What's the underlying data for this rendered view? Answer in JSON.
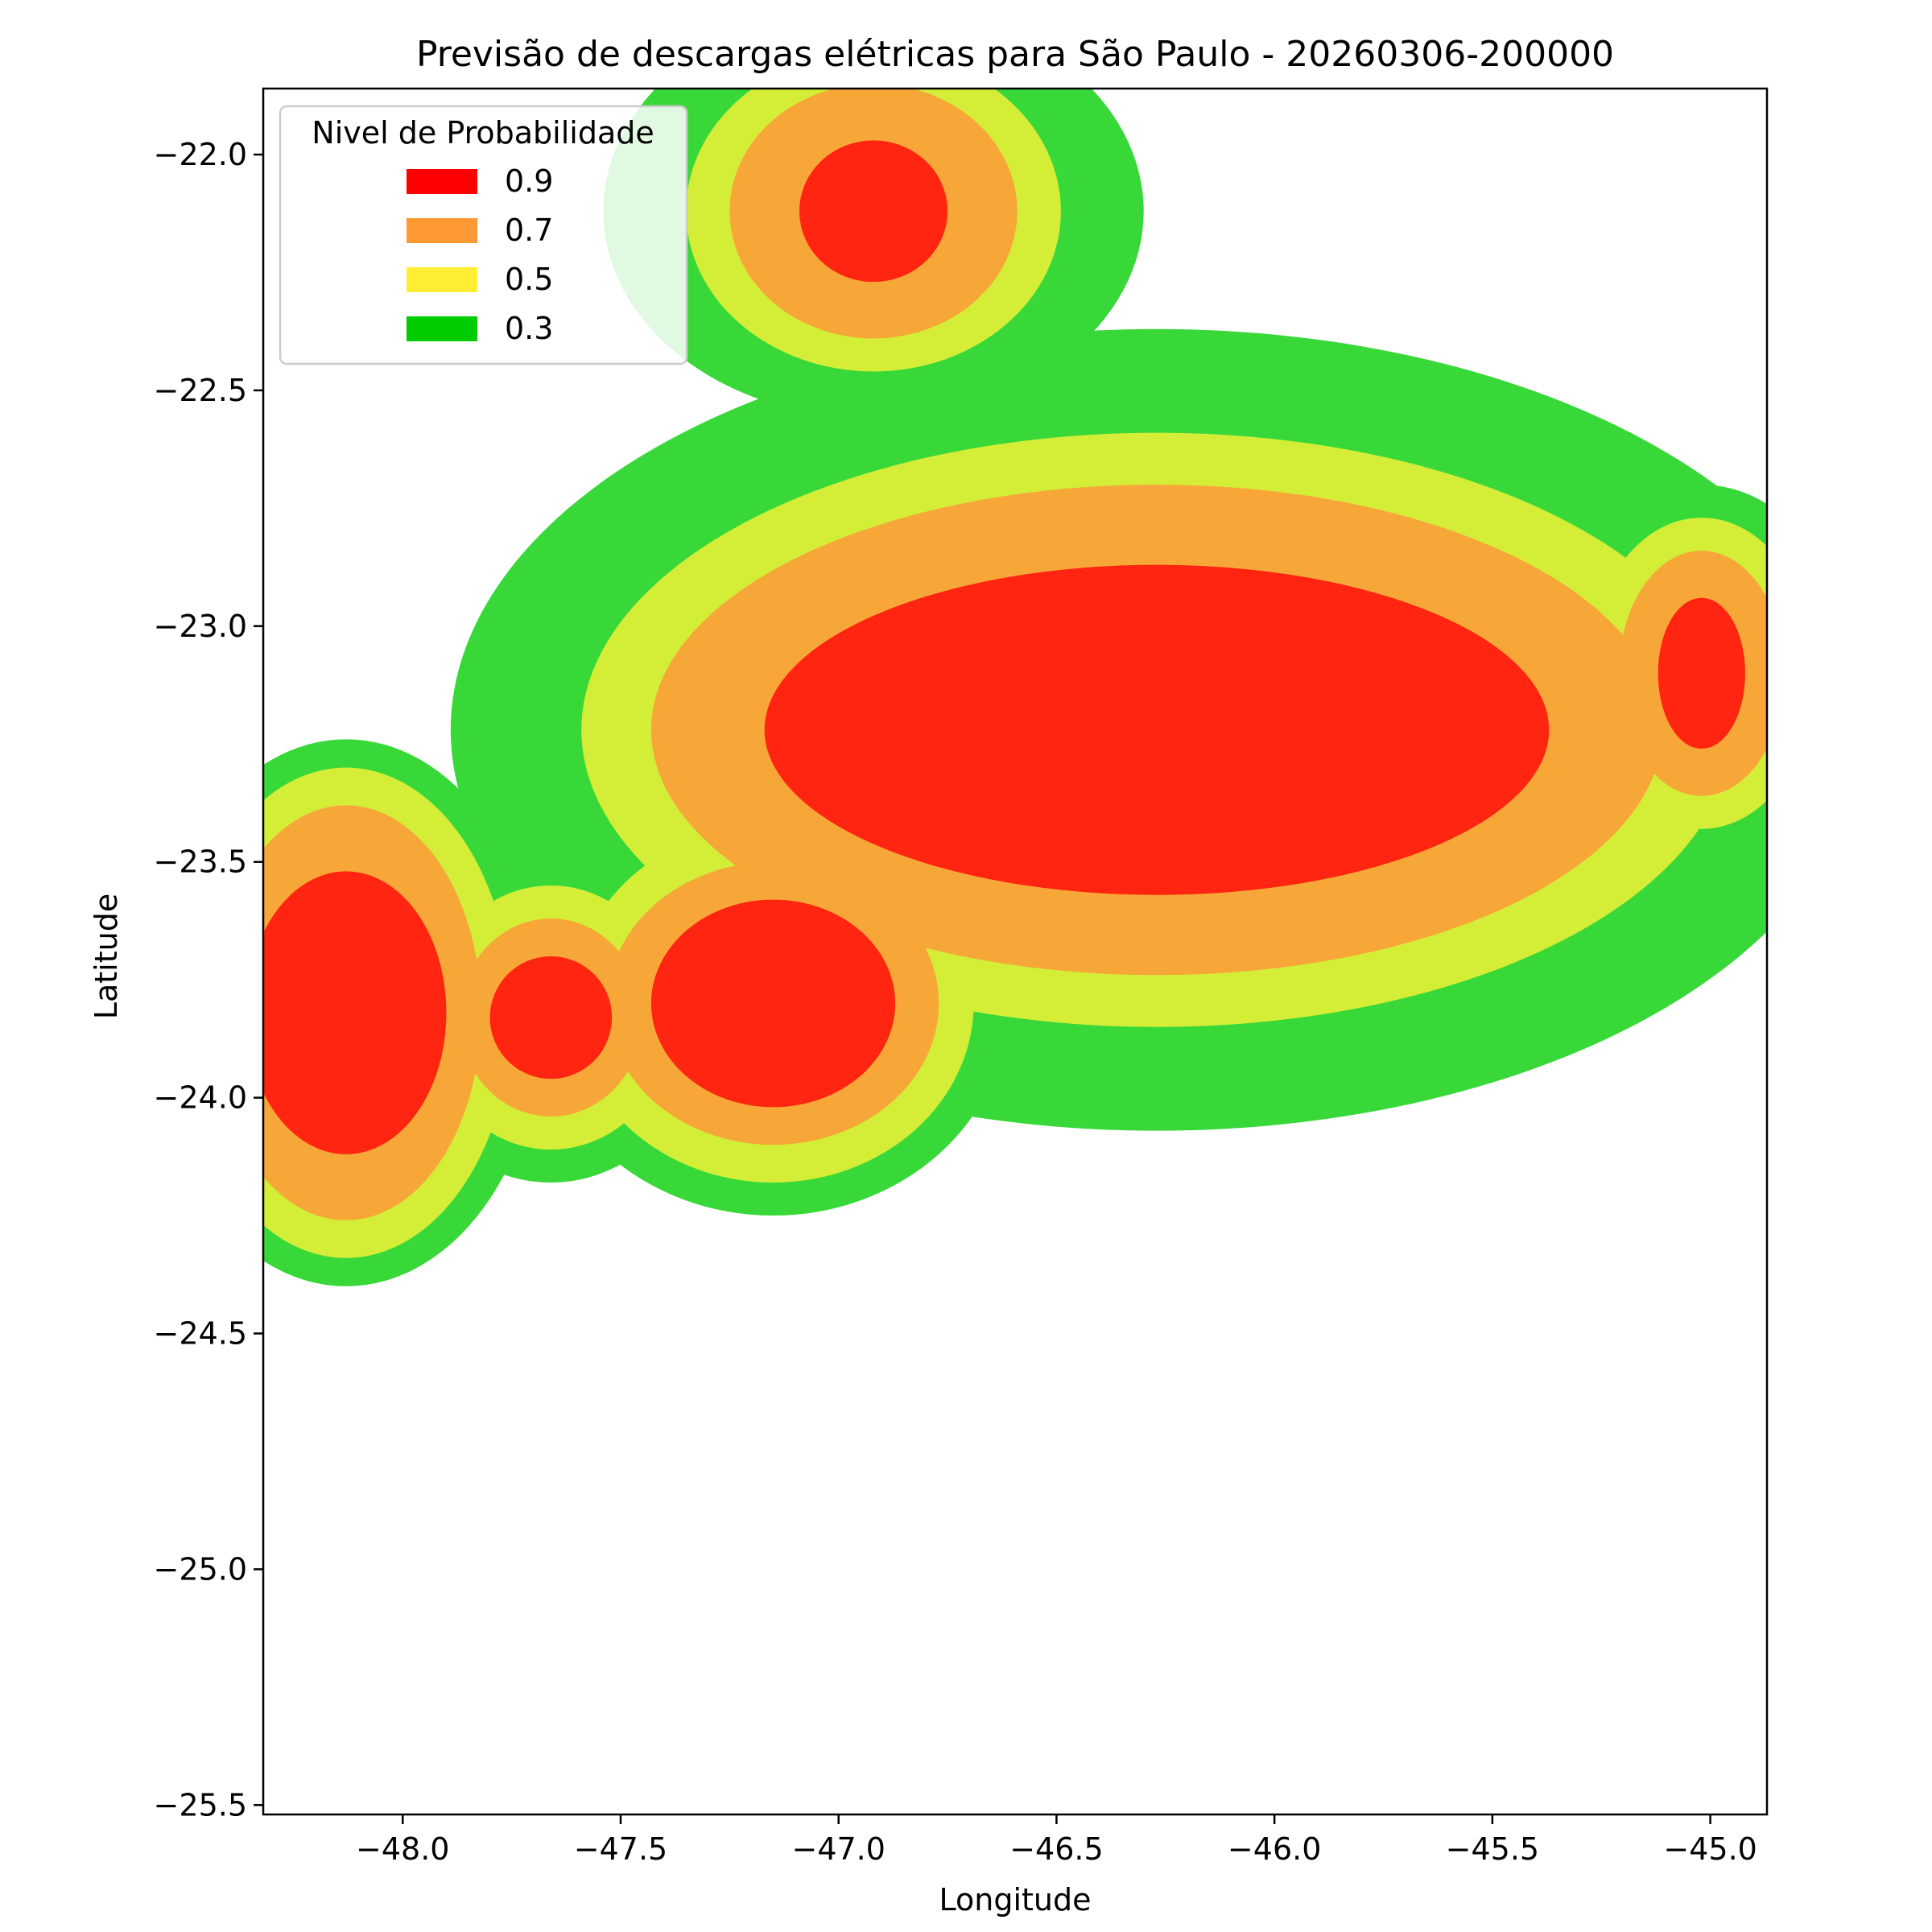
{
  "chart_data": {
    "type": "heatmap",
    "title": "Previsão de descargas elétricas para São Paulo - 20260306-200000",
    "xlabel": "Longitude",
    "ylabel": "Latitude",
    "xlim": [
      -48.32,
      -44.87
    ],
    "ylim": [
      -25.52,
      -21.86
    ],
    "xticks": [
      -48.0,
      -47.5,
      -47.0,
      -46.5,
      -46.0,
      -45.5,
      -45.0
    ],
    "yticks": [
      -22.0,
      -22.5,
      -23.0,
      -23.5,
      -24.0,
      -24.5,
      -25.0,
      -25.5
    ],
    "xtick_labels": [
      "−48.0",
      "−47.5",
      "−47.0",
      "−46.5",
      "−46.0",
      "−45.5",
      "−45.0"
    ],
    "ytick_labels": [
      "−22.0",
      "−22.5",
      "−23.0",
      "−23.5",
      "−24.0",
      "−24.5",
      "−25.0",
      "−25.5"
    ],
    "grid": false,
    "legend": {
      "title": "Nivel de Probabilidade",
      "placement": "top-left",
      "entries": [
        {
          "label": "0.9",
          "color": "#ff0000"
        },
        {
          "label": "0.7",
          "color": "#ff9933"
        },
        {
          "label": "0.5",
          "color": "#ffee33"
        },
        {
          "label": "0.3",
          "color": "#00cc00"
        }
      ]
    },
    "fill_colors": {
      "0.3": "#38d838",
      "0.5": "#d4ee38",
      "0.7": "#f7a738",
      "0.9": "#ff2510"
    },
    "storm_cells": [
      {
        "name": "north",
        "center": [
          -46.92,
          -22.12
        ],
        "radius_lon": [
          0.62,
          0.43,
          0.33,
          0.17
        ],
        "radius_lat": [
          0.44,
          0.34,
          0.27,
          0.15
        ]
      },
      {
        "name": "central",
        "center": [
          -46.27,
          -23.22
        ],
        "radius_lon": [
          1.62,
          1.32,
          1.16,
          0.9
        ],
        "radius_lat": [
          0.85,
          0.63,
          0.52,
          0.35
        ]
      },
      {
        "name": "west",
        "center": [
          -48.13,
          -23.82
        ],
        "radius_lon": [
          0.45,
          0.38,
          0.31,
          0.23
        ],
        "radius_lat": [
          0.58,
          0.52,
          0.44,
          0.3
        ]
      },
      {
        "name": "middle-west",
        "center": [
          -47.66,
          -23.83
        ],
        "radius_lon": [
          0.35,
          0.28,
          0.21,
          0.14
        ],
        "radius_lat": [
          0.35,
          0.28,
          0.21,
          0.13
        ]
      },
      {
        "name": "middle",
        "center": [
          -47.15,
          -23.8
        ],
        "radius_lon": [
          0.54,
          0.46,
          0.38,
          0.28
        ],
        "radius_lat": [
          0.45,
          0.38,
          0.3,
          0.22
        ]
      },
      {
        "name": "east",
        "center": [
          -45.02,
          -23.1
        ],
        "radius_lon": [
          0.34,
          0.26,
          0.19,
          0.1
        ],
        "radius_lat": [
          0.4,
          0.33,
          0.26,
          0.16
        ]
      }
    ]
  }
}
